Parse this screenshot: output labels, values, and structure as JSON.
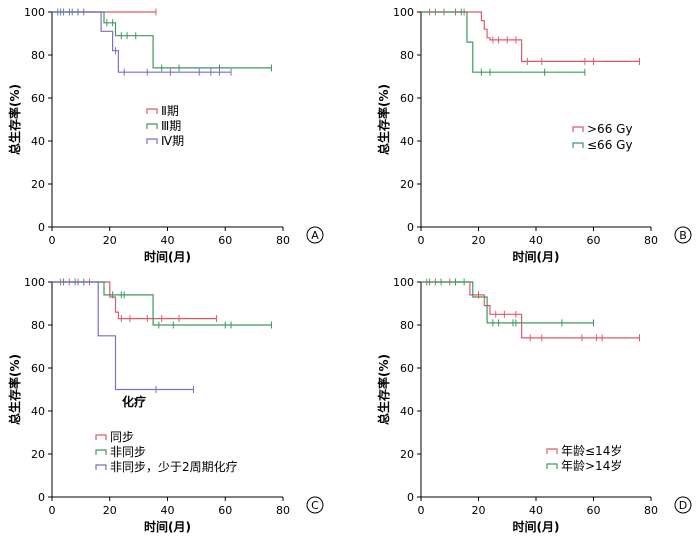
{
  "chart_data": [
    {
      "type": "line",
      "panel_label": "A",
      "xlabel": "时间(月)",
      "ylabel": "总生存率(%)",
      "xlim": [
        0,
        80
      ],
      "ylim": [
        0,
        100
      ],
      "xticks": [
        0,
        20,
        40,
        60,
        80
      ],
      "yticks": [
        0,
        20,
        40,
        60,
        80,
        100
      ],
      "legend_position": "center-left",
      "series": [
        {
          "name": "Ⅱ期",
          "color": "#e05a6e",
          "steps": [
            [
              0,
              100
            ],
            [
              36,
              100
            ]
          ],
          "censors": [
            [
              36,
              100
            ]
          ]
        },
        {
          "name": "Ⅲ期",
          "color": "#3a9a5e",
          "steps": [
            [
              0,
              100
            ],
            [
              18,
              100
            ],
            [
              18,
              95
            ],
            [
              22,
              95
            ],
            [
              22,
              89
            ],
            [
              35,
              89
            ],
            [
              35,
              74
            ],
            [
              76,
              74
            ]
          ],
          "censors": [
            [
              3,
              100
            ],
            [
              6,
              100
            ],
            [
              9,
              100
            ],
            [
              19,
              95
            ],
            [
              21,
              95
            ],
            [
              24,
              89
            ],
            [
              26,
              89
            ],
            [
              29,
              89
            ],
            [
              38,
              74
            ],
            [
              44,
              74
            ],
            [
              58,
              74
            ],
            [
              76,
              74
            ]
          ]
        },
        {
          "name": "Ⅳ期",
          "color": "#7b6fc6",
          "steps": [
            [
              0,
              100
            ],
            [
              17,
              100
            ],
            [
              17,
              91
            ],
            [
              21,
              91
            ],
            [
              21,
              82
            ],
            [
              23,
              82
            ],
            [
              23,
              72
            ],
            [
              62,
              72
            ]
          ],
          "censors": [
            [
              2,
              100
            ],
            [
              4,
              100
            ],
            [
              7,
              100
            ],
            [
              11,
              100
            ],
            [
              22,
              82
            ],
            [
              25,
              72
            ],
            [
              33,
              72
            ],
            [
              41,
              72
            ],
            [
              51,
              72
            ],
            [
              55,
              72
            ],
            [
              58,
              72
            ],
            [
              62,
              72
            ]
          ]
        }
      ]
    },
    {
      "type": "line",
      "panel_label": "B",
      "xlabel": "时间(月)",
      "ylabel": "总生存率(%)",
      "xlim": [
        0,
        80
      ],
      "ylim": [
        0,
        100
      ],
      "xticks": [
        0,
        20,
        40,
        60,
        80
      ],
      "yticks": [
        0,
        20,
        40,
        60,
        80,
        100
      ],
      "legend_position": "right-center",
      "series": [
        {
          "name": ">66 Gy",
          "color": "#e05a6e",
          "steps": [
            [
              0,
              100
            ],
            [
              21,
              100
            ],
            [
              21,
              96
            ],
            [
              22,
              96
            ],
            [
              22,
              92
            ],
            [
              23,
              92
            ],
            [
              23,
              88
            ],
            [
              24,
              88
            ],
            [
              24,
              87
            ],
            [
              35,
              87
            ],
            [
              35,
              77
            ],
            [
              76,
              77
            ]
          ],
          "censors": [
            [
              3,
              100
            ],
            [
              5,
              100
            ],
            [
              8,
              100
            ],
            [
              12,
              100
            ],
            [
              15,
              100
            ],
            [
              25,
              87
            ],
            [
              27,
              87
            ],
            [
              30,
              87
            ],
            [
              33,
              87
            ],
            [
              37,
              77
            ],
            [
              42,
              77
            ],
            [
              57,
              77
            ],
            [
              60,
              77
            ],
            [
              76,
              77
            ]
          ]
        },
        {
          "name": "≤66 Gy",
          "color": "#3a9a5e",
          "steps": [
            [
              0,
              100
            ],
            [
              16,
              100
            ],
            [
              16,
              86
            ],
            [
              18,
              86
            ],
            [
              18,
              72
            ],
            [
              57,
              72
            ]
          ],
          "censors": [
            [
              14,
              100
            ],
            [
              21,
              72
            ],
            [
              24,
              72
            ],
            [
              43,
              72
            ],
            [
              57,
              72
            ]
          ]
        }
      ]
    },
    {
      "type": "line",
      "panel_label": "C",
      "xlabel": "时间(月)",
      "ylabel": "总生存率(%)",
      "xlim": [
        0,
        80
      ],
      "ylim": [
        0,
        100
      ],
      "xticks": [
        0,
        20,
        40,
        60,
        80
      ],
      "yticks": [
        0,
        20,
        40,
        60,
        80,
        100
      ],
      "legend_position": "bottom-left",
      "annotation": "化疗",
      "series": [
        {
          "name": "同步",
          "color": "#e05a6e",
          "steps": [
            [
              0,
              100
            ],
            [
              20,
              100
            ],
            [
              20,
              93
            ],
            [
              22,
              93
            ],
            [
              22,
              86
            ],
            [
              23,
              86
            ],
            [
              23,
              83
            ],
            [
              57,
              83
            ]
          ],
          "censors": [
            [
              3,
              100
            ],
            [
              6,
              100
            ],
            [
              9,
              100
            ],
            [
              13,
              100
            ],
            [
              24,
              83
            ],
            [
              27,
              83
            ],
            [
              33,
              83
            ],
            [
              38,
              83
            ],
            [
              44,
              83
            ],
            [
              57,
              83
            ]
          ]
        },
        {
          "name": "非同步",
          "color": "#3a9a5e",
          "steps": [
            [
              0,
              100
            ],
            [
              18,
              100
            ],
            [
              18,
              94
            ],
            [
              35,
              94
            ],
            [
              35,
              80
            ],
            [
              76,
              80
            ]
          ],
          "censors": [
            [
              4,
              100
            ],
            [
              8,
              100
            ],
            [
              11,
              100
            ],
            [
              21,
              94
            ],
            [
              24,
              94
            ],
            [
              25,
              94
            ],
            [
              37,
              80
            ],
            [
              42,
              80
            ],
            [
              60,
              80
            ],
            [
              62,
              80
            ],
            [
              76,
              80
            ]
          ]
        },
        {
          "name": "非同步，少于2周期化疗",
          "color": "#7b6fc6",
          "steps": [
            [
              0,
              100
            ],
            [
              16,
              100
            ],
            [
              16,
              75
            ],
            [
              22,
              75
            ],
            [
              22,
              50
            ],
            [
              49,
              50
            ]
          ],
          "censors": [
            [
              36,
              50
            ],
            [
              49,
              50
            ]
          ]
        }
      ]
    },
    {
      "type": "line",
      "panel_label": "D",
      "xlabel": "时间(月)",
      "ylabel": "总生存率(%)",
      "xlim": [
        0,
        80
      ],
      "ylim": [
        0,
        100
      ],
      "xticks": [
        0,
        20,
        40,
        60,
        80
      ],
      "yticks": [
        0,
        20,
        40,
        60,
        80,
        100
      ],
      "legend_position": "bottom-right",
      "series": [
        {
          "name": "年龄≤14岁",
          "color": "#e05a6e",
          "steps": [
            [
              0,
              100
            ],
            [
              17,
              100
            ],
            [
              17,
              94
            ],
            [
              22,
              94
            ],
            [
              22,
              89
            ],
            [
              24,
              89
            ],
            [
              24,
              85
            ],
            [
              35,
              85
            ],
            [
              35,
              74
            ],
            [
              76,
              74
            ]
          ],
          "censors": [
            [
              2,
              100
            ],
            [
              5,
              100
            ],
            [
              10,
              100
            ],
            [
              20,
              94
            ],
            [
              26,
              85
            ],
            [
              29,
              85
            ],
            [
              33,
              85
            ],
            [
              38,
              74
            ],
            [
              42,
              74
            ],
            [
              56,
              74
            ],
            [
              61,
              74
            ],
            [
              63,
              74
            ],
            [
              76,
              74
            ]
          ]
        },
        {
          "name": "年龄>14岁",
          "color": "#3a9a5e",
          "steps": [
            [
              0,
              100
            ],
            [
              18,
              100
            ],
            [
              18,
              93
            ],
            [
              23,
              93
            ],
            [
              23,
              81
            ],
            [
              60,
              81
            ]
          ],
          "censors": [
            [
              3,
              100
            ],
            [
              7,
              100
            ],
            [
              12,
              100
            ],
            [
              15,
              100
            ],
            [
              25,
              81
            ],
            [
              27,
              81
            ],
            [
              32,
              81
            ],
            [
              33,
              81
            ],
            [
              49,
              81
            ],
            [
              60,
              81
            ]
          ]
        }
      ]
    }
  ]
}
